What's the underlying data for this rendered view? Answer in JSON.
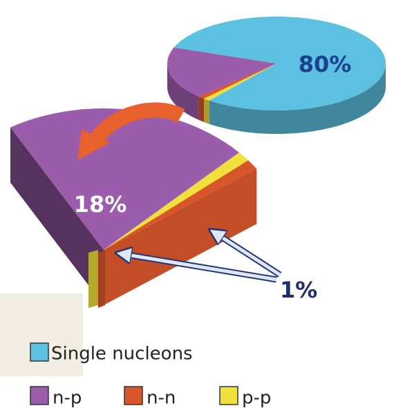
{
  "chart_data": {
    "type": "pie",
    "categories": [
      "Single nucleons",
      "n-p",
      "n-n",
      "p-p"
    ],
    "values": [
      80,
      18,
      1,
      1
    ],
    "value_labels": [
      "80%",
      "18%",
      "1%",
      null
    ],
    "colors": [
      "#5cc0e0",
      "#9b5cab",
      "#d9552a",
      "#f0e03c"
    ]
  }
}
